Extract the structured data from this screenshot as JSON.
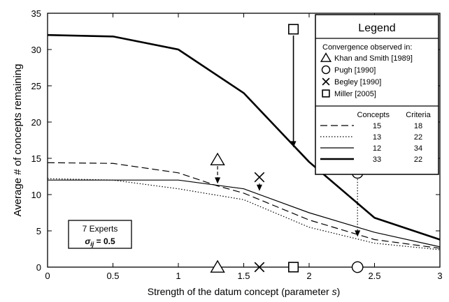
{
  "chart_data": {
    "type": "line",
    "xlabel_main": "Strength of the datum concept (parameter ",
    "xlabel_var": "s",
    "xlabel_close": ")",
    "ylabel": "Average # of concepts remaining",
    "xlim": [
      0,
      3
    ],
    "ylim": [
      0,
      35
    ],
    "x_ticks": [
      "0",
      "0.5",
      "1",
      "1.5",
      "2",
      "2.5",
      "3"
    ],
    "y_ticks": [
      "0",
      "5",
      "10",
      "15",
      "20",
      "25",
      "30",
      "35"
    ],
    "grid": false,
    "legend_position": "top-right",
    "series": [
      {
        "concepts": "15",
        "criteria": "18",
        "style": "dashed",
        "x": [
          0,
          0.5,
          1.0,
          1.3,
          1.5,
          2.0,
          2.5,
          3.0
        ],
        "y": [
          14.4,
          14.3,
          13.0,
          11.2,
          10.2,
          6.5,
          3.8,
          2.6
        ]
      },
      {
        "concepts": "13",
        "criteria": "22",
        "style": "dotted",
        "x": [
          0,
          0.5,
          1.0,
          1.5,
          2.0,
          2.5,
          3.0
        ],
        "y": [
          12.2,
          12.0,
          10.8,
          9.3,
          5.5,
          3.3,
          2.4
        ]
      },
      {
        "concepts": "12",
        "criteria": "34",
        "style": "thin",
        "x": [
          0,
          0.5,
          1.0,
          1.5,
          2.0,
          2.5,
          3.0
        ],
        "y": [
          12.0,
          12.0,
          12.0,
          10.8,
          7.5,
          4.8,
          2.8
        ]
      },
      {
        "concepts": "33",
        "criteria": "22",
        "style": "thick",
        "x": [
          0,
          0.5,
          1.0,
          1.5,
          2.0,
          2.5,
          3.0
        ],
        "y": [
          32.0,
          31.8,
          30.0,
          24.0,
          14.5,
          6.8,
          3.8
        ]
      }
    ],
    "convergence_markers": [
      {
        "label": "Khan and Smith [1989]",
        "symbol": "triangle",
        "x": 1.3,
        "y_from": 14.8,
        "y_to": 11.5,
        "arrow": "dashed"
      },
      {
        "label": "Pugh [1990]",
        "symbol": "circle",
        "x": 2.37,
        "y_from": 13.0,
        "y_to": 4.2,
        "arrow": "dotted"
      },
      {
        "label": "Begley [1990]",
        "symbol": "x",
        "x": 1.62,
        "y_from": 12.4,
        "y_to": 10.5,
        "arrow": "thin"
      },
      {
        "label": "Miller [2005]",
        "symbol": "square",
        "x": 1.88,
        "y_from": 32.8,
        "y_to": 16.5,
        "arrow": "thick"
      }
    ],
    "legend": {
      "title": "Legend",
      "subtitle": "Convergence observed in:",
      "col_concepts": "Concepts",
      "col_criteria": "Criteria"
    },
    "annotation": {
      "line1": "7 Experts",
      "sigma_symbol": "σ",
      "sigma_sub": "ij",
      "sigma_value": " = 0.5"
    }
  }
}
